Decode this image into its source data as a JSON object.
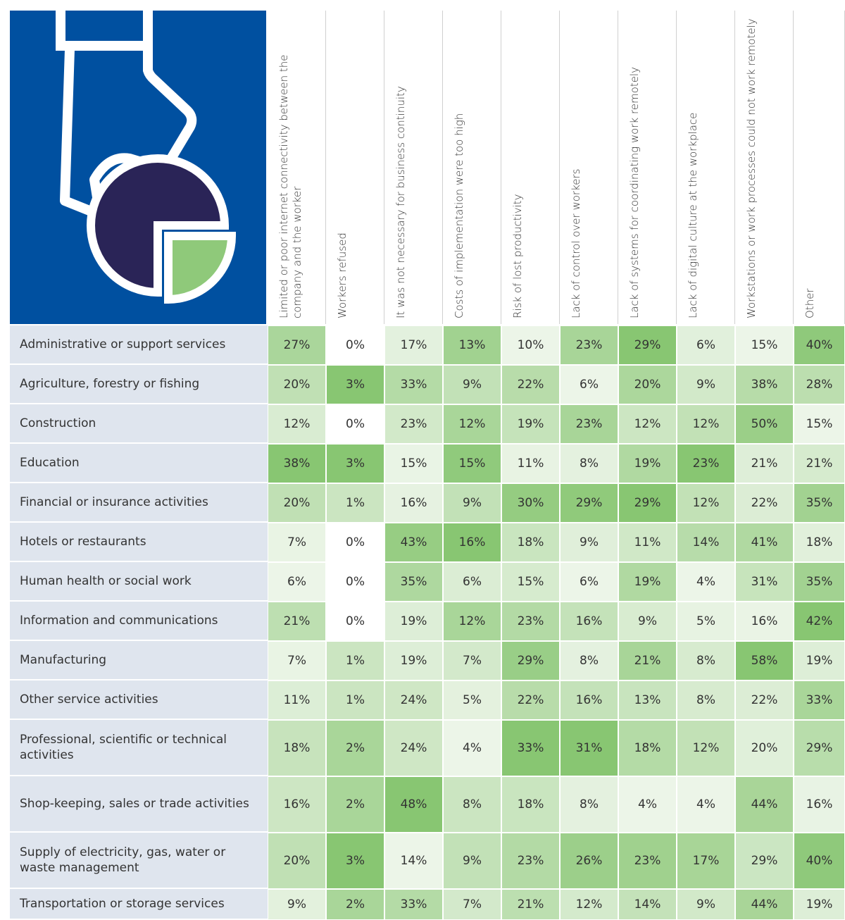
{
  "table": {
    "columns": [
      "Limited or poor internet connectivity between the company and the worker",
      "Workers refused",
      "It was not necessary for business continuity",
      "Costs of implementation were too high",
      "Risk of lost productivity",
      "Lack of control over workers",
      "Lack of systems for coordinating work remotely",
      "Lack of digital culture at the workplace",
      "Workstations or work processes could not work remotely",
      "Other"
    ],
    "rows": [
      {
        "label": "Administrative or support services",
        "cells": [
          "27%",
          "0%",
          "17%",
          "13%",
          "10%",
          "23%",
          "29%",
          "6%",
          "15%",
          "40%"
        ]
      },
      {
        "label": "Agriculture, forestry or fishing",
        "cells": [
          "20%",
          "3%",
          "33%",
          "9%",
          "22%",
          "6%",
          "20%",
          "9%",
          "38%",
          "28%"
        ]
      },
      {
        "label": "Construction",
        "cells": [
          "12%",
          "0%",
          "23%",
          "12%",
          "19%",
          "23%",
          "12%",
          "12%",
          "50%",
          "15%"
        ]
      },
      {
        "label": "Education",
        "cells": [
          "38%",
          "3%",
          "15%",
          "15%",
          "11%",
          "8%",
          "19%",
          "23%",
          "21%",
          "21%"
        ]
      },
      {
        "label": "Financial or insurance activities",
        "cells": [
          "20%",
          "1%",
          "16%",
          "9%",
          "30%",
          "29%",
          "29%",
          "12%",
          "22%",
          "35%"
        ]
      },
      {
        "label": "Hotels or restaurants",
        "cells": [
          "7%",
          "0%",
          "43%",
          "16%",
          "18%",
          "9%",
          "11%",
          "14%",
          "41%",
          "18%"
        ]
      },
      {
        "label": "Human health or social work",
        "cells": [
          "6%",
          "0%",
          "35%",
          "6%",
          "15%",
          "6%",
          "19%",
          "4%",
          "31%",
          "35%"
        ]
      },
      {
        "label": "Information and communications",
        "cells": [
          "21%",
          "0%",
          "19%",
          "12%",
          "23%",
          "16%",
          "9%",
          "5%",
          "16%",
          "42%"
        ]
      },
      {
        "label": "Manufacturing",
        "cells": [
          "7%",
          "1%",
          "19%",
          "7%",
          "29%",
          "8%",
          "21%",
          "8%",
          "58%",
          "19%"
        ]
      },
      {
        "label": "Other service activities",
        "cells": [
          "11%",
          "1%",
          "24%",
          "5%",
          "22%",
          "16%",
          "13%",
          "8%",
          "22%",
          "33%"
        ]
      },
      {
        "label": "Professional, scientific or technical activities",
        "cells": [
          "18%",
          "2%",
          "24%",
          "4%",
          "33%",
          "31%",
          "18%",
          "12%",
          "20%",
          "29%"
        ]
      },
      {
        "label": "Shop-keeping, sales or trade activities",
        "cells": [
          "16%",
          "2%",
          "48%",
          "8%",
          "18%",
          "8%",
          "4%",
          "4%",
          "44%",
          "16%"
        ]
      },
      {
        "label": "Supply of electricity, gas, water or waste management",
        "cells": [
          "20%",
          "3%",
          "14%",
          "9%",
          "23%",
          "26%",
          "23%",
          "17%",
          "29%",
          "40%"
        ]
      },
      {
        "label": "Transportation or storage services",
        "cells": [
          "9%",
          "2%",
          "33%",
          "7%",
          "21%",
          "12%",
          "14%",
          "9%",
          "44%",
          "19%"
        ]
      }
    ]
  }
}
